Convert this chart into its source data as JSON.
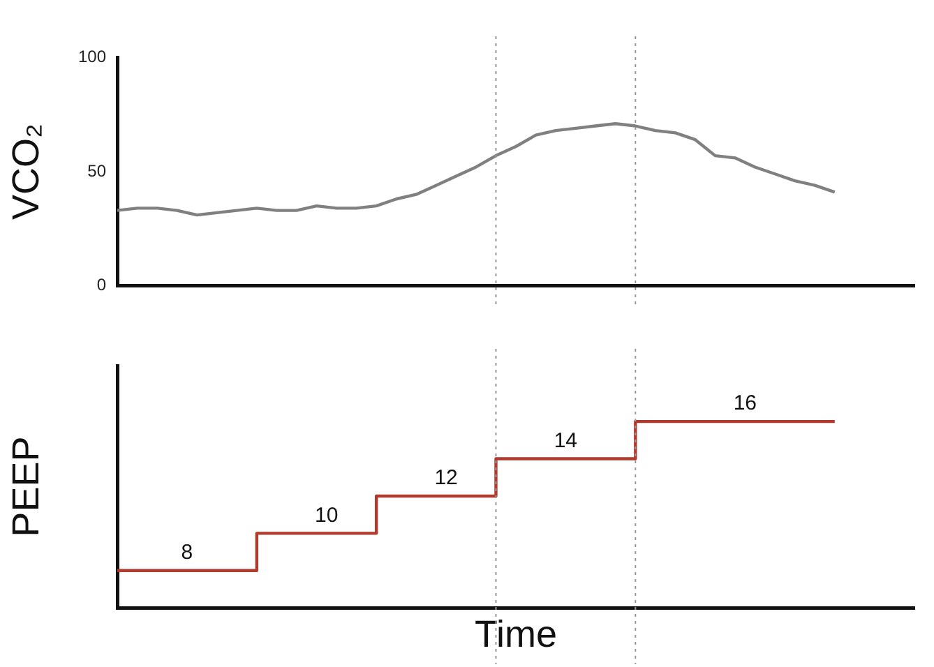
{
  "chart_data": [
    {
      "type": "line",
      "ylabel": "VCO₂",
      "categories": [
        null,
        null,
        null,
        null,
        null,
        null,
        null,
        null,
        null,
        null,
        null,
        null,
        null,
        null,
        null,
        null,
        null,
        null,
        null,
        null,
        null,
        null,
        null,
        null,
        null,
        null,
        null,
        null,
        null,
        null,
        null,
        null,
        null,
        null,
        null,
        null,
        null,
        null,
        null,
        null,
        null
      ],
      "ylim": [
        0,
        100
      ],
      "yticks": [
        0,
        50,
        100
      ],
      "tick_labels": "y",
      "grid": false,
      "legend": false,
      "marker": "none",
      "series": [
        {
          "color": "#808080",
          "values": [
            33,
            34,
            34,
            33,
            31,
            32,
            33,
            34,
            33,
            33,
            35,
            34,
            34,
            35,
            38,
            40,
            44,
            48,
            52,
            57,
            61,
            66,
            68,
            69,
            70,
            71,
            70,
            68,
            67,
            64,
            57,
            56,
            52,
            49,
            46,
            44,
            41,
            null,
            null,
            null,
            null
          ]
        }
      ]
    },
    {
      "type": "step",
      "ylabel": "PEEP",
      "xlabel": "Time",
      "categories": [
        null,
        null,
        null,
        null,
        null,
        null,
        null,
        null,
        null,
        null,
        null,
        null,
        null,
        null,
        null,
        null,
        null,
        null,
        null,
        null,
        null,
        null,
        null,
        null,
        null,
        null,
        null,
        null,
        null,
        null,
        null,
        null,
        null,
        null,
        null,
        null,
        null,
        null,
        null,
        null,
        null
      ],
      "ylim": [
        6,
        19
      ],
      "tick_labels": false,
      "grid": false,
      "legend": false,
      "marker": "none",
      "series": [
        {
          "color": "#b03a2e",
          "values": [
            8,
            8,
            8,
            8,
            8,
            8,
            8,
            10,
            10,
            10,
            10,
            10,
            10,
            12,
            12,
            12,
            12,
            12,
            12,
            14,
            14,
            14,
            14,
            14,
            14,
            14,
            16,
            16,
            16,
            16,
            16,
            16,
            16,
            16,
            16,
            16,
            16,
            null,
            null,
            null,
            null
          ],
          "value_labels": [
            null,
            null,
            null,
            "8",
            null,
            null,
            null,
            null,
            null,
            null,
            "10",
            null,
            null,
            null,
            null,
            null,
            "12",
            null,
            null,
            null,
            null,
            null,
            "14",
            null,
            null,
            null,
            null,
            null,
            null,
            null,
            null,
            "16",
            null,
            null,
            null,
            null,
            null,
            null,
            null,
            null,
            null
          ]
        }
      ]
    }
  ]
}
